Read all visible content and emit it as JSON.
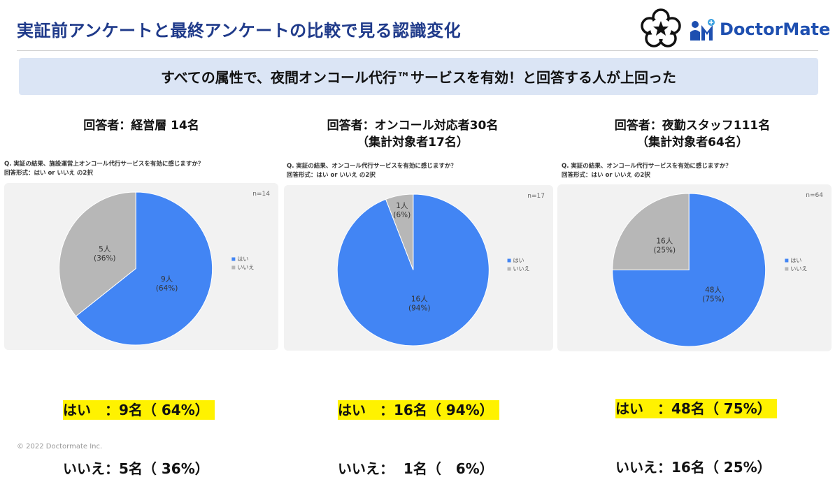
{
  "title": "実証前アンケートと最終アンケートの比較で見る認識変化",
  "logo_text": "DoctorMate",
  "banner": "すべての属性で、夜間オンコール代行™サービスを有効！と回答する人が上回った",
  "footer": "© 2022 Doctormate Inc.",
  "colors": {
    "yes": "#4285f4",
    "no": "#b7b7b7",
    "title": "#1f3a8a",
    "highlight": "#fff200"
  },
  "panels": [
    {
      "header": "回答者：経営層 14名",
      "question": "Q. 実証の結果、施設運営上オンコール代行サービスを有効に感じますか？",
      "answer_format": "回答形式：はい or いいえ の2択",
      "result_yes": "はい　：9名（ 64%）",
      "result_no": "いいえ：5名（ 36%）"
    },
    {
      "header": "回答者：オンコール対応者30名\n（集計対象者17名）",
      "question": "Q. 実証の結果、オンコール代行サービスを有効に感じますか？",
      "answer_format": "回答形式：はい or いいえ の2択",
      "result_yes": "はい　：16名（ 94%）",
      "result_no": "いいえ：  1名（   6%）"
    },
    {
      "header": "回答者：夜勤スタッフ111名\n（集計対象者64名）",
      "question": "Q. 実証の結果、オンコール代行サービスを有効に感じますか？",
      "answer_format": "回答形式：はい or いいえ の2択",
      "result_yes": "はい　：48名（ 75%）",
      "result_no": "いいえ：16名（ 25%）"
    }
  ],
  "chart_data": [
    {
      "type": "pie",
      "n_label": "n=14",
      "categories": [
        "はい",
        "いいえ"
      ],
      "values": [
        9,
        5
      ],
      "slice_labels": [
        [
          "9人",
          "(64%)"
        ],
        [
          "5人",
          "(36%)"
        ]
      ],
      "legend": [
        "はい",
        "いいえ"
      ],
      "legend_position": "right",
      "colors": [
        "#4285f4",
        "#b7b7b7"
      ]
    },
    {
      "type": "pie",
      "n_label": "n=17",
      "categories": [
        "はい",
        "いいえ"
      ],
      "values": [
        16,
        1
      ],
      "slice_labels": [
        [
          "16人",
          "(94%)"
        ],
        [
          "1人",
          "(6%)"
        ]
      ],
      "legend": [
        "はい",
        "いいえ"
      ],
      "legend_position": "right",
      "colors": [
        "#4285f4",
        "#b7b7b7"
      ]
    },
    {
      "type": "pie",
      "n_label": "n=64",
      "categories": [
        "はい",
        "いいえ"
      ],
      "values": [
        48,
        16
      ],
      "slice_labels": [
        [
          "48人",
          "(75%)"
        ],
        [
          "16人",
          "(25%)"
        ]
      ],
      "legend": [
        "はい",
        "いいえ"
      ],
      "legend_position": "right",
      "colors": [
        "#4285f4",
        "#b7b7b7"
      ]
    }
  ]
}
